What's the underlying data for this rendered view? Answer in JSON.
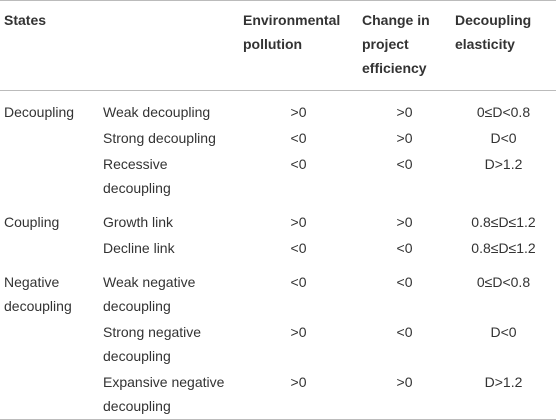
{
  "table": {
    "header": [
      "States",
      "Environmental pollution",
      "Change in project efficiency",
      "Decoupling elasticity"
    ],
    "groups": [
      {
        "state": "Decoupling",
        "rows": [
          {
            "type": "Weak decoupling",
            "pollution": ">0",
            "efficiency": ">0",
            "elasticity": "0≤D<0.8"
          },
          {
            "type": "Strong decoupling",
            "pollution": "<0",
            "efficiency": ">0",
            "elasticity": "D<0"
          },
          {
            "type": "Recessive decoupling",
            "pollution": "<0",
            "efficiency": "<0",
            "elasticity": "D>1.2"
          }
        ]
      },
      {
        "state": "Coupling",
        "rows": [
          {
            "type": "Growth link",
            "pollution": ">0",
            "efficiency": ">0",
            "elasticity": "0.8≤D≤1.2"
          },
          {
            "type": "Decline link",
            "pollution": "<0",
            "efficiency": "<0",
            "elasticity": "0.8≤D≤1.2"
          }
        ]
      },
      {
        "state": "Negative decoupling",
        "rows": [
          {
            "type": "Weak negative decoupling",
            "pollution": "<0",
            "efficiency": "<0",
            "elasticity": "0≤D<0.8"
          },
          {
            "type": "Strong negative decoupling",
            "pollution": ">0",
            "efficiency": "<0",
            "elasticity": "D<0"
          },
          {
            "type": "Expansive negative decoupling",
            "pollution": ">0",
            "efficiency": ">0",
            "elasticity": "D>1.2"
          }
        ]
      }
    ]
  }
}
